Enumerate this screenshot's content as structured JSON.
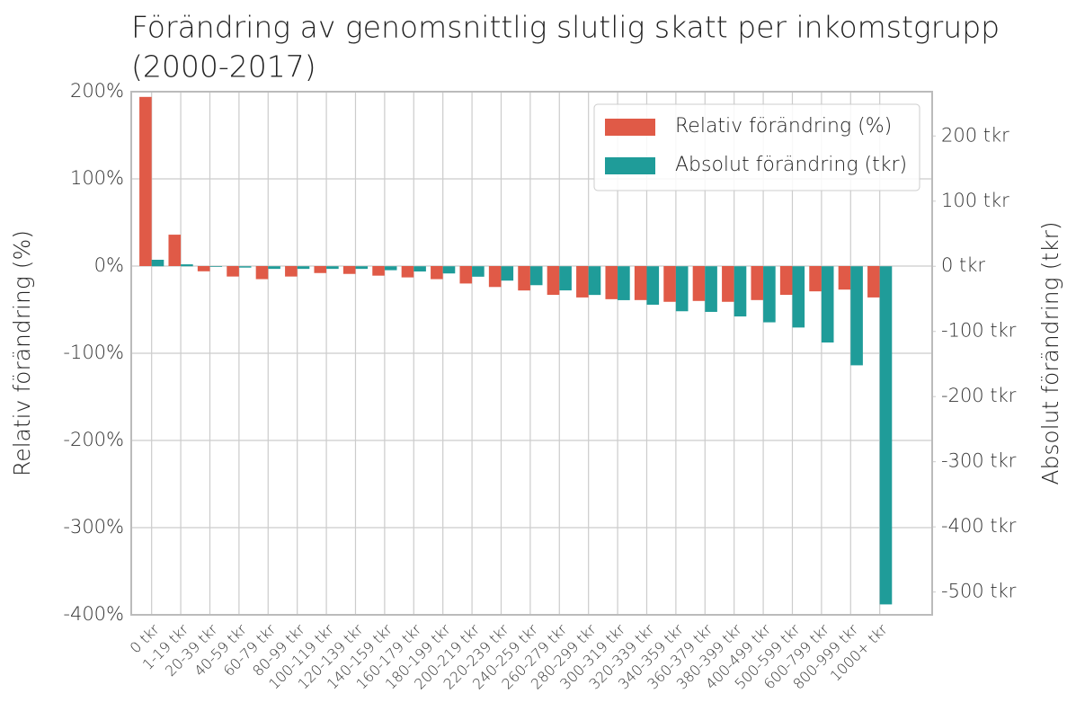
{
  "chart_data": {
    "type": "bar",
    "title": [
      "Förändring av genomsnittlig slutlig skatt per inkomstgrupp",
      "(2000-2017)"
    ],
    "ylabel": "Relativ förändring (%)",
    "y2label": "Absolut förändring (tkr)",
    "categories": [
      "0 tkr",
      "1-19 tkr",
      "20-39 tkr",
      "40-59 tkr",
      "60-79 tkr",
      "80-99 tkr",
      "100-119 tkr",
      "120-139 tkr",
      "140-159 tkr",
      "160-179 tkr",
      "180-199 tkr",
      "200-219 tkr",
      "220-239 tkr",
      "240-259 tkr",
      "260-279 tkr",
      "280-299 tkr",
      "300-319 tkr",
      "320-339 tkr",
      "340-359 tkr",
      "360-379 tkr",
      "380-399 tkr",
      "400-499 tkr",
      "500-599 tkr",
      "600-799 tkr",
      "800-999 tkr",
      "1000+ tkr"
    ],
    "series": [
      {
        "name": "Relativ förändring (%)",
        "color": "#e05a47",
        "axis": "y",
        "values": [
          194,
          36,
          -6,
          -12,
          -15,
          -12,
          -8,
          -9,
          -11,
          -13,
          -15,
          -20,
          -24,
          -28,
          -33,
          -36,
          -38,
          -39,
          -41,
          -40,
          -41,
          -39,
          -33,
          -29,
          -27,
          -36
        ]
      },
      {
        "name": "Absolut förändring (tkr)",
        "color": "#1f9c99",
        "axis": "y2",
        "values": [
          10,
          3,
          -1,
          -2,
          -4,
          -4,
          -4,
          -4,
          -6,
          -8,
          -11,
          -16,
          -22,
          -29,
          -37,
          -44,
          -52,
          -59,
          -69,
          -70,
          -77,
          -86,
          -94,
          -117,
          -152,
          -519
        ]
      }
    ],
    "ylim": [
      -400,
      200
    ],
    "yticks": [
      {
        "value": -400,
        "label": "-400%"
      },
      {
        "value": -300,
        "label": "-300%"
      },
      {
        "value": -200,
        "label": "-200%"
      },
      {
        "value": -100,
        "label": "-100%"
      },
      {
        "value": 0,
        "label": "0%"
      },
      {
        "value": 100,
        "label": "100%"
      },
      {
        "value": 200,
        "label": "200%"
      }
    ],
    "y2lim": [
      -535,
      268
    ],
    "y2ticks": [
      {
        "value": -500,
        "label": "-500 tkr"
      },
      {
        "value": -400,
        "label": "-400 tkr"
      },
      {
        "value": -300,
        "label": "-300 tkr"
      },
      {
        "value": -200,
        "label": "-200 tkr"
      },
      {
        "value": -100,
        "label": "-100 tkr"
      },
      {
        "value": 0,
        "label": "0 tkr"
      },
      {
        "value": 100,
        "label": "100 tkr"
      },
      {
        "value": 200,
        "label": "200 tkr"
      }
    ],
    "grid": true,
    "legend": "upper right"
  }
}
